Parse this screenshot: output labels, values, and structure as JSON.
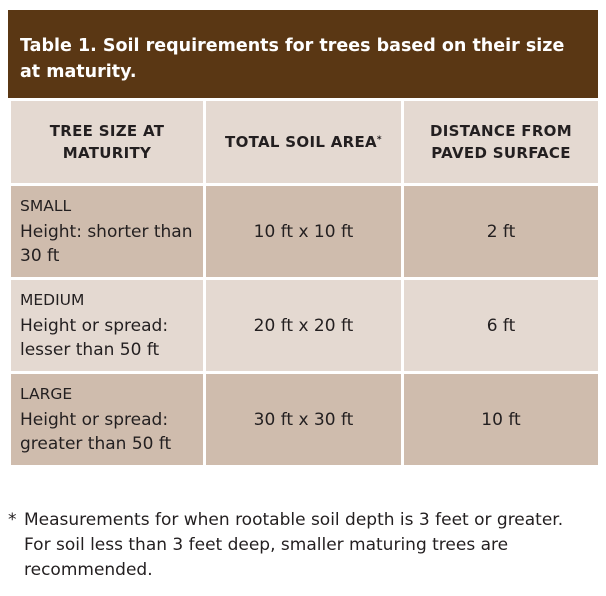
{
  "title": "Table 1. Soil requirements for trees based on their size at maturity.",
  "headers": {
    "tree_size": "TREE SIZE AT MATURITY",
    "soil_area": "TOTAL SOIL AREA",
    "soil_area_mark": "*",
    "distance": "DISTANCE FROM PAVED SURFACE"
  },
  "rows": [
    {
      "size": "SMALL",
      "description": "Height: shorter than 30 ft",
      "soil_area": "10 ft x 10 ft",
      "distance": "2 ft"
    },
    {
      "size": "MEDIUM",
      "description": "Height or spread: lesser than 50 ft",
      "soil_area": "20 ft x 20 ft",
      "distance": "6 ft"
    },
    {
      "size": "LARGE",
      "description": "Height or spread: greater than 50 ft",
      "soil_area": "30 ft x 30 ft",
      "distance": "10 ft"
    }
  ],
  "footnote": {
    "mark": "*",
    "text": "Measurements for when rootable soil depth is 3 feet or greater. For soil less than 3 feet deep, smaller maturing trees are recommended."
  },
  "colors": {
    "title_background": "#5a3714",
    "header_background": "#e4d9d1",
    "dark_row": "#cfbcad",
    "light_row": "#e4d9d1"
  }
}
